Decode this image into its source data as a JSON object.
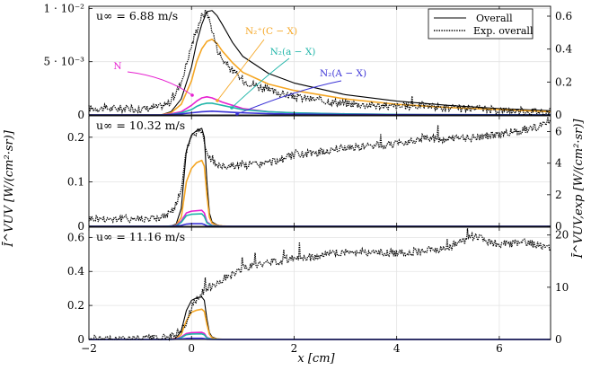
{
  "chart_data": {
    "type": "line",
    "shared_x": {
      "label": "x [cm]",
      "range": [
        -2,
        7
      ],
      "ticks": [
        -2,
        0,
        2,
        4,
        6
      ],
      "tick_labels": [
        "−2",
        "0",
        "2",
        "4",
        "6"
      ]
    },
    "left_axis_label": "Ī^VUV [W/(cm²·sr)]",
    "right_axis_label": "Ī^VUV,exp [W/(cm²·sr)]",
    "legend": {
      "placement": "top-right",
      "entries": [
        {
          "label": "Overall",
          "style": "solid",
          "color": "#000000"
        },
        {
          "label": "Exp. overall",
          "style": "dotted",
          "color": "#000000"
        }
      ]
    },
    "panels": [
      {
        "title": "u∞ = 6.88 m/s",
        "ylim_left": [
          0,
          0.0102
        ],
        "ylim_right": [
          0,
          0.66
        ],
        "left_ticks": [
          0,
          0.005,
          0.01
        ],
        "left_tick_labels": [
          "0",
          "5 · 10⁻³",
          "1 · 10⁻²"
        ],
        "right_ticks": [
          0,
          0.2,
          0.4,
          0.6
        ],
        "right_tick_labels": [
          "0",
          "0.2",
          "0.4",
          "0.6"
        ],
        "annotations": [
          {
            "text": "N₂⁺(C − X)",
            "color": "#f5a623"
          },
          {
            "text": "N₂(a − X)",
            "color": "#1fb5a8"
          },
          {
            "text": "N",
            "color": "#e61fd0"
          },
          {
            "text": "N₂(A − X)",
            "color": "#3b33d6"
          }
        ],
        "series": [
          {
            "name": "Overall",
            "color": "#000000",
            "x": [
              -2,
              -0.6,
              -0.4,
              -0.2,
              0,
              0.1,
              0.2,
              0.3,
              0.4,
              0.5,
              0.6,
              0.8,
              1.0,
              1.5,
              2.0,
              3.0,
              4.0,
              5.0,
              6.0,
              7.0
            ],
            "y": [
              0.0,
              0.0,
              0.0003,
              0.0015,
              0.0045,
              0.0068,
              0.0085,
              0.0097,
              0.0098,
              0.0093,
              0.0085,
              0.0068,
              0.0055,
              0.0039,
              0.003,
              0.0019,
              0.0013,
              0.0009,
              0.0006,
              0.0004
            ]
          },
          {
            "name": "N₂⁺(C − X)",
            "color": "#f5a623",
            "x": [
              -2,
              -0.6,
              -0.4,
              -0.2,
              0,
              0.1,
              0.2,
              0.3,
              0.4,
              0.5,
              0.6,
              0.8,
              1.0,
              1.5,
              2.0,
              3.0,
              4.0,
              5.0,
              6.0,
              7.0
            ],
            "y": [
              0.0,
              0.0,
              0.0002,
              0.001,
              0.0032,
              0.005,
              0.0062,
              0.0069,
              0.0071,
              0.0067,
              0.006,
              0.0049,
              0.004,
              0.0029,
              0.0023,
              0.0015,
              0.001,
              0.0007,
              0.0005,
              0.0003
            ]
          },
          {
            "name": "N",
            "color": "#e61fd0",
            "x": [
              -2,
              -0.6,
              -0.4,
              -0.2,
              0,
              0.1,
              0.2,
              0.3,
              0.4,
              0.5,
              0.6,
              0.8,
              1.0,
              1.5,
              2.0,
              3.0,
              4.0,
              5.0,
              6.0,
              7.0
            ],
            "y": [
              0.0,
              0.0,
              0.0001,
              0.0003,
              0.0009,
              0.0013,
              0.0016,
              0.0017,
              0.0016,
              0.0014,
              0.0012,
              0.0009,
              0.0006,
              0.0003,
              0.0002,
              0.0001,
              5e-05,
              3e-05,
              2e-05,
              1e-05
            ]
          },
          {
            "name": "N₂(a − X)",
            "color": "#1fb5a8",
            "x": [
              -2,
              -0.6,
              -0.4,
              -0.2,
              0,
              0.1,
              0.2,
              0.3,
              0.4,
              0.5,
              0.6,
              0.8,
              1.0,
              1.5,
              2.0,
              3.0,
              4.0,
              5.0,
              6.0,
              7.0
            ],
            "y": [
              0.0,
              0.0,
              5e-05,
              0.0002,
              0.0005,
              0.0008,
              0.001,
              0.0011,
              0.0011,
              0.001,
              0.0009,
              0.0007,
              0.0005,
              0.0003,
              0.0002,
              0.0001,
              5e-05,
              3e-05,
              2e-05,
              1e-05
            ]
          },
          {
            "name": "N₂(A − X)",
            "color": "#3b33d6",
            "x": [
              -2,
              -0.6,
              -0.4,
              -0.2,
              0,
              0.2,
              0.4,
              0.6,
              0.8,
              1.0,
              1.5,
              2.0,
              3.0,
              4.0,
              5.0,
              6.0,
              7.0
            ],
            "y": [
              0.0,
              0.0,
              3e-05,
              0.0001,
              0.0002,
              0.0003,
              0.00035,
              0.0003,
              0.00025,
              0.0002,
              0.00012,
              8e-05,
              4e-05,
              2e-05,
              1e-05,
              1e-05,
              0.0
            ]
          }
        ]
      },
      {
        "title": "u∞ = 10.32 m/s",
        "ylim_left": [
          0,
          0.248
        ],
        "ylim_right": [
          0,
          7.0
        ],
        "left_ticks": [
          0,
          0.1,
          0.2
        ],
        "left_tick_labels": [
          "0",
          "0.1",
          "0.2"
        ],
        "right_ticks": [
          0,
          2,
          4,
          6
        ],
        "right_tick_labels": [
          "0",
          "2",
          "4",
          "6"
        ],
        "series": [
          {
            "name": "Overall",
            "color": "#000000",
            "x": [
              -2,
              -0.6,
              -0.4,
              -0.3,
              -0.2,
              -0.1,
              0,
              0.1,
              0.2,
              0.25,
              0.3,
              0.35,
              0.4,
              0.5,
              0.6,
              0.8,
              1.0,
              7.0
            ],
            "y": [
              0.0,
              0.0,
              0.001,
              0.005,
              0.04,
              0.17,
              0.205,
              0.215,
              0.22,
              0.2,
              0.1,
              0.03,
              0.01,
              0.003,
              0.001,
              0.0,
              0.0,
              0.0
            ]
          },
          {
            "name": "N₂⁺(C − X)",
            "color": "#f5a623",
            "x": [
              -2,
              -0.6,
              -0.4,
              -0.3,
              -0.2,
              -0.1,
              0,
              0.1,
              0.2,
              0.25,
              0.3,
              0.35,
              0.4,
              0.5,
              0.6,
              0.8,
              1.0,
              7.0
            ],
            "y": [
              0.0,
              0.0,
              0.0005,
              0.003,
              0.02,
              0.1,
              0.13,
              0.143,
              0.148,
              0.135,
              0.07,
              0.02,
              0.007,
              0.002,
              0.0008,
              0.0,
              0.0,
              0.0
            ]
          },
          {
            "name": "N",
            "color": "#e61fd0",
            "x": [
              -2,
              -0.5,
              -0.3,
              -0.2,
              -0.1,
              0,
              0.2,
              0.25,
              0.3,
              0.4,
              0.6,
              7.0
            ],
            "y": [
              0.0,
              0.0,
              0.002,
              0.012,
              0.03,
              0.034,
              0.036,
              0.03,
              0.01,
              0.002,
              0.0,
              0.0
            ]
          },
          {
            "name": "N₂(a − X)",
            "color": "#1fb5a8",
            "x": [
              -2,
              -0.5,
              -0.3,
              -0.2,
              -0.1,
              0,
              0.2,
              0.25,
              0.3,
              0.4,
              0.6,
              7.0
            ],
            "y": [
              0.0,
              0.0,
              0.0015,
              0.009,
              0.024,
              0.027,
              0.028,
              0.022,
              0.008,
              0.0015,
              0.0,
              0.0
            ]
          },
          {
            "name": "N₂(A − X)",
            "color": "#3b33d6",
            "x": [
              -2,
              -0.4,
              -0.2,
              -0.1,
              0,
              0.2,
              0.25,
              0.3,
              0.4,
              7.0
            ],
            "y": [
              0.0,
              0.0,
              0.002,
              0.005,
              0.006,
              0.006,
              0.004,
              0.001,
              0.0,
              0.0
            ]
          }
        ]
      },
      {
        "title": "u∞ = 11.16 m/s",
        "ylim_left": [
          0,
          0.66
        ],
        "ylim_right": [
          0,
          21.5
        ],
        "left_ticks": [
          0,
          0.2,
          0.4,
          0.6
        ],
        "left_tick_labels": [
          "0",
          "0.2",
          "0.4",
          "0.6"
        ],
        "right_ticks": [
          0,
          10,
          20
        ],
        "right_tick_labels": [
          "0",
          "10",
          "20"
        ],
        "series": [
          {
            "name": "Overall",
            "color": "#000000",
            "x": [
              -2,
              -0.6,
              -0.4,
              -0.3,
              -0.2,
              -0.1,
              0,
              0.1,
              0.2,
              0.25,
              0.3,
              0.35,
              0.4,
              0.5,
              0.6,
              0.8,
              1.0,
              7.0
            ],
            "y": [
              0.0,
              0.0,
              0.003,
              0.01,
              0.05,
              0.17,
              0.23,
              0.245,
              0.25,
              0.23,
              0.12,
              0.04,
              0.015,
              0.004,
              0.001,
              0.0,
              0.0,
              0.0
            ]
          },
          {
            "name": "N₂⁺(C − X)",
            "color": "#f5a623",
            "x": [
              -2,
              -0.6,
              -0.4,
              -0.3,
              -0.2,
              -0.1,
              0,
              0.1,
              0.2,
              0.25,
              0.3,
              0.35,
              0.4,
              0.5,
              0.6,
              0.8,
              1.0,
              7.0
            ],
            "y": [
              0.0,
              0.0,
              0.002,
              0.006,
              0.03,
              0.11,
              0.16,
              0.172,
              0.178,
              0.165,
              0.09,
              0.03,
              0.01,
              0.003,
              0.001,
              0.0,
              0.0,
              0.0
            ]
          },
          {
            "name": "N",
            "color": "#e61fd0",
            "x": [
              -2,
              -0.5,
              -0.3,
              -0.2,
              -0.1,
              0,
              0.2,
              0.25,
              0.3,
              0.4,
              0.6,
              7.0
            ],
            "y": [
              0.0,
              0.0,
              0.003,
              0.015,
              0.035,
              0.04,
              0.042,
              0.035,
              0.012,
              0.002,
              0.0,
              0.0
            ]
          },
          {
            "name": "N₂(a − X)",
            "color": "#1fb5a8",
            "x": [
              -2,
              -0.5,
              -0.3,
              -0.2,
              -0.1,
              0,
              0.2,
              0.25,
              0.3,
              0.4,
              0.6,
              7.0
            ],
            "y": [
              0.0,
              0.0,
              0.002,
              0.011,
              0.028,
              0.032,
              0.033,
              0.027,
              0.009,
              0.0015,
              0.0,
              0.0
            ]
          },
          {
            "name": "N₂(A − X)",
            "color": "#3b33d6",
            "x": [
              -2,
              -0.4,
              -0.2,
              -0.1,
              0,
              0.2,
              0.25,
              0.3,
              0.4,
              7.0
            ],
            "y": [
              0.0,
              0.0,
              0.003,
              0.006,
              0.007,
              0.007,
              0.005,
              0.001,
              0.0,
              0.0
            ]
          }
        ]
      }
    ],
    "experimental": [
      {
        "name": "Exp. overall",
        "axis": "right",
        "color": "#000000",
        "x": [
          -2,
          -1.5,
          -1.0,
          -0.6,
          -0.4,
          -0.2,
          0,
          0.1,
          0.2,
          0.3,
          0.4,
          0.5,
          0.6,
          0.8,
          1.0,
          1.5,
          2.0,
          3.0,
          4.0,
          4.5,
          5.0,
          6.0,
          7.0
        ],
        "y": [
          0.04,
          0.04,
          0.035,
          0.05,
          0.08,
          0.2,
          0.42,
          0.52,
          0.6,
          0.63,
          0.52,
          0.4,
          0.34,
          0.27,
          0.21,
          0.15,
          0.11,
          0.07,
          0.05,
          0.06,
          0.04,
          0.03,
          0.02
        ]
      },
      {
        "name": "Exp. overall",
        "axis": "right",
        "color": "#000000",
        "x": [
          -2,
          -1.5,
          -1.0,
          -0.6,
          -0.4,
          -0.2,
          -0.1,
          0,
          0.1,
          0.2,
          0.3,
          0.4,
          0.5,
          0.6,
          1.0,
          1.5,
          2.0,
          2.5,
          3.0,
          4.0,
          4.5,
          5.0,
          6.0,
          7.0
        ],
        "y": [
          0.5,
          0.48,
          0.5,
          0.55,
          0.8,
          2.2,
          4.8,
          5.8,
          6.0,
          6.1,
          4.8,
          4.2,
          3.9,
          3.8,
          3.9,
          4.0,
          4.5,
          4.7,
          5.0,
          5.2,
          5.6,
          5.5,
          5.8,
          6.5
        ]
      },
      {
        "name": "Exp. overall",
        "axis": "right",
        "color": "#000000",
        "x": [
          -2,
          -1.0,
          -0.6,
          -0.4,
          -0.2,
          -0.1,
          0,
          0.2,
          0.5,
          1.0,
          1.5,
          2.0,
          2.5,
          3.0,
          4.0,
          4.5,
          5.0,
          5.5,
          6.0,
          6.5,
          7.0
        ],
        "y": [
          0.05,
          0.1,
          0.15,
          0.4,
          1.5,
          3.5,
          6.0,
          9.0,
          11.0,
          13.5,
          14.8,
          15.5,
          16.0,
          16.8,
          16.5,
          17.0,
          17.5,
          19.8,
          18.2,
          18.5,
          17.6
        ]
      }
    ]
  }
}
